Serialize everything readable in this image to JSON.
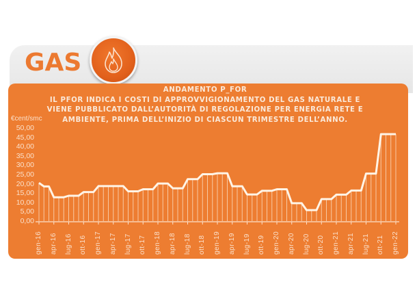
{
  "header": {
    "title": "GAS",
    "icon": "flame-icon"
  },
  "colors": {
    "panel": "#ed7d31",
    "accent": "#e2611c",
    "line": "#fff4e6",
    "title_text": "#ec7a31"
  },
  "chart_heading": {
    "line1": "ANDAMENTO P_FOR",
    "line2": "IL PFOR INDICA I COSTI DI APPROVVIGIONAMENTO DEL GAS NATURALE E",
    "line3": "VIENE PUBBLICATO DALL’AUTORITÀ DI REGOLAZIONE PER ENERGIA RETE E",
    "line4": "AMBIENTE, PRIMA DELL’INIZIO DI CIASCUN TRIMESTRE DELL’ANNO."
  },
  "chart_data": {
    "type": "line",
    "title": "ANDAMENTO P_FOR",
    "subtitle": "IL PFOR INDICA I COSTI DI APPROVVIGIONAMENTO DEL GAS NATURALE E VIENE PUBBLICATO DALL’AUTORITÀ DI REGOLAZIONE PER ENERGIA RETE E AMBIENTE, PRIMA DELL’INIZIO DI CIASCUN TRIMESTRE DELL’ANNO.",
    "xlabel": "",
    "ylabel": "€cent/smc",
    "ylim": [
      0,
      50
    ],
    "yticks": [
      "0,00",
      "5,00",
      "10,00",
      "15,00",
      "20,00",
      "25,00",
      "30,00",
      "35,00",
      "40,00",
      "45,00",
      "50,00"
    ],
    "xtick_labels": [
      "gen-16",
      "apr-16",
      "lug-16",
      "ott-16",
      "gen-17",
      "apr-17",
      "lug-17",
      "ott-17",
      "gen-18",
      "apr-18",
      "lug-18",
      "ott-18",
      "gen-19",
      "apr-19",
      "lug-19",
      "ott-19",
      "gen-20",
      "apr-20",
      "lug-20",
      "ott-20",
      "gen-21",
      "apr-21",
      "lug-21",
      "ott-21",
      "gen-22"
    ],
    "grid": false,
    "legend": null,
    "series": [
      {
        "name": "P_FOR",
        "x": [
          "gen-16",
          "feb-16",
          "mar-16",
          "apr-16",
          "mag-16",
          "giu-16",
          "lug-16",
          "ago-16",
          "set-16",
          "ott-16",
          "nov-16",
          "dic-16",
          "gen-17",
          "feb-17",
          "mar-17",
          "apr-17",
          "mag-17",
          "giu-17",
          "lug-17",
          "ago-17",
          "set-17",
          "ott-17",
          "nov-17",
          "dic-17",
          "gen-18",
          "feb-18",
          "mar-18",
          "apr-18",
          "mag-18",
          "giu-18",
          "lug-18",
          "ago-18",
          "set-18",
          "ott-18",
          "nov-18",
          "dic-18",
          "gen-19",
          "feb-19",
          "mar-19",
          "apr-19",
          "mag-19",
          "giu-19",
          "lug-19",
          "ago-19",
          "set-19",
          "ott-19",
          "nov-19",
          "dic-19",
          "gen-20",
          "feb-20",
          "mar-20",
          "apr-20",
          "mag-20",
          "giu-20",
          "lug-20",
          "ago-20",
          "set-20",
          "ott-20",
          "nov-20",
          "dic-20",
          "gen-21",
          "feb-21",
          "mar-21",
          "apr-21",
          "mag-21",
          "giu-21",
          "lug-21",
          "ago-21",
          "set-21",
          "ott-21",
          "nov-21",
          "dic-21",
          "gen-22"
        ],
        "values": [
          20.5,
          18.6,
          18.6,
          12.8,
          12.8,
          12.8,
          13.6,
          13.6,
          13.6,
          15.6,
          15.6,
          15.6,
          18.8,
          18.8,
          18.8,
          18.8,
          18.8,
          18.8,
          16.0,
          16.0,
          16.0,
          17.1,
          17.1,
          17.1,
          20.2,
          20.2,
          20.2,
          17.6,
          17.6,
          17.6,
          22.5,
          22.5,
          22.5,
          25.2,
          25.2,
          25.2,
          25.7,
          25.7,
          25.7,
          18.7,
          18.7,
          18.7,
          14.3,
          14.3,
          14.3,
          16.3,
          16.3,
          16.3,
          17.1,
          17.1,
          17.1,
          9.6,
          9.6,
          9.6,
          5.9,
          5.9,
          5.9,
          11.8,
          11.8,
          11.8,
          14.2,
          14.2,
          14.2,
          16.4,
          16.4,
          16.4,
          25.5,
          25.5,
          25.5,
          46.7,
          46.7,
          46.7,
          46.7
        ]
      }
    ]
  }
}
